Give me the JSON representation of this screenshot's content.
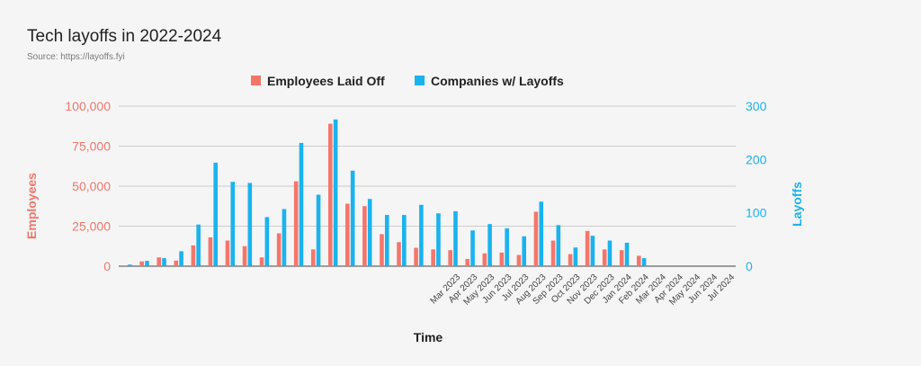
{
  "chart_data": {
    "type": "bar",
    "title": "Tech layoffs in 2022-2024",
    "subtitle": "Source: https://layoffs.fyi",
    "xlabel": "Time",
    "ylabel_left": "Employees",
    "ylabel_right": "Layoffs",
    "ylim_left": [
      0,
      100000
    ],
    "ylim_right": [
      0,
      300
    ],
    "yticks_left": [
      "0",
      "25,000",
      "50,000",
      "75,000",
      "100,000"
    ],
    "yticks_right": [
      "0",
      "100",
      "200",
      "300"
    ],
    "legend_position": "top-center",
    "grid": true,
    "categories": [
      "",
      "",
      "",
      "",
      "",
      "",
      "",
      "",
      "",
      "",
      "",
      "",
      "",
      "",
      "",
      "",
      "",
      "",
      "",
      "Mar 2023",
      "Apr 2023",
      "May 2023",
      "Jun 2023",
      "Jul 2023",
      "Aug 2023",
      "Sep 2023",
      "Oct 2023",
      "Nov 2023",
      "Dec 2023",
      "Jan 2024",
      "Feb 2024",
      "Mar 2024",
      "Apr 2024",
      "May 2024",
      "Jun 2024",
      "Jul 2024"
    ],
    "series": [
      {
        "name": "Employees Laid Off",
        "axis": "left",
        "color": "#f4766b",
        "values": [
          500,
          3000,
          5500,
          3500,
          13000,
          18000,
          16000,
          12500,
          5500,
          20500,
          53000,
          10500,
          89000,
          39000,
          37500,
          20000,
          15000,
          11500,
          10500,
          10000,
          4500,
          8000,
          8500,
          7000,
          34000,
          16000,
          7500,
          22000,
          10500,
          10000,
          6500,
          0,
          0,
          0,
          0,
          0
        ]
      },
      {
        "name": "Companies w/ Layoffs",
        "axis": "right",
        "color": "#1ab3ee",
        "values": [
          3,
          10,
          15,
          28,
          78,
          194,
          158,
          156,
          92,
          107,
          231,
          134,
          275,
          179,
          126,
          96,
          96,
          115,
          99,
          103,
          67,
          79,
          71,
          56,
          121,
          77,
          35,
          57,
          48,
          44,
          15,
          0,
          0,
          0,
          0,
          0
        ]
      }
    ]
  }
}
